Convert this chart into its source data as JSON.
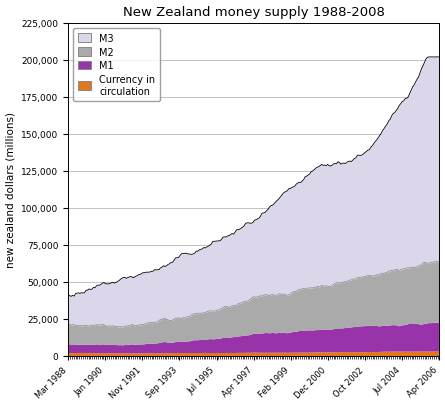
{
  "title": "New Zealand money supply 1988-2008",
  "ylabel": "new zealand dollars (millions)",
  "ylim": [
    0,
    225000
  ],
  "yticks": [
    0,
    25000,
    50000,
    75000,
    100000,
    125000,
    150000,
    175000,
    200000,
    225000
  ],
  "ytick_labels": [
    "0",
    "25,000",
    "50,000",
    "75,000",
    "100,000",
    "125,000",
    "150,000",
    "175,000",
    "200,000",
    "225,000"
  ],
  "xtick_labels": [
    "Mar 1988",
    "Jan 1990",
    "Nov 1991",
    "Sep 1993",
    "Jul 1995",
    "Apr 1997",
    "Feb 1999",
    "Dec 2000",
    "Oct 2002",
    "Jul 2004",
    "Apr 2006"
  ],
  "colors": {
    "M3": "#dcd6ea",
    "M2": "#aaaaaa",
    "M1": "#9933aa",
    "currency": "#e07820"
  },
  "line_color": "#000000",
  "background_color": "#ffffff"
}
